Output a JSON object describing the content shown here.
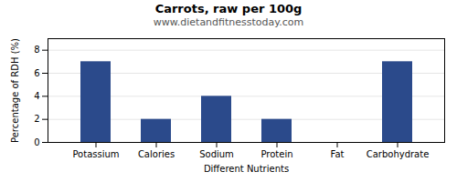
{
  "chart_data": {
    "type": "bar",
    "title": "Carrots, raw per 100g",
    "subtitle": "www.dietandfitnesstoday.com",
    "xlabel": "Different Nutrients",
    "ylabel": "Percentage of RDH (%)",
    "categories": [
      "Potassium",
      "Calories",
      "Sodium",
      "Protein",
      "Fat",
      "Carbohydrate"
    ],
    "values": [
      7,
      2,
      4,
      2,
      0,
      7
    ],
    "color": "#2b4a8b",
    "ylim": [
      0,
      9
    ],
    "yticks": [
      0,
      2,
      4,
      6,
      8
    ],
    "grid": true
  }
}
